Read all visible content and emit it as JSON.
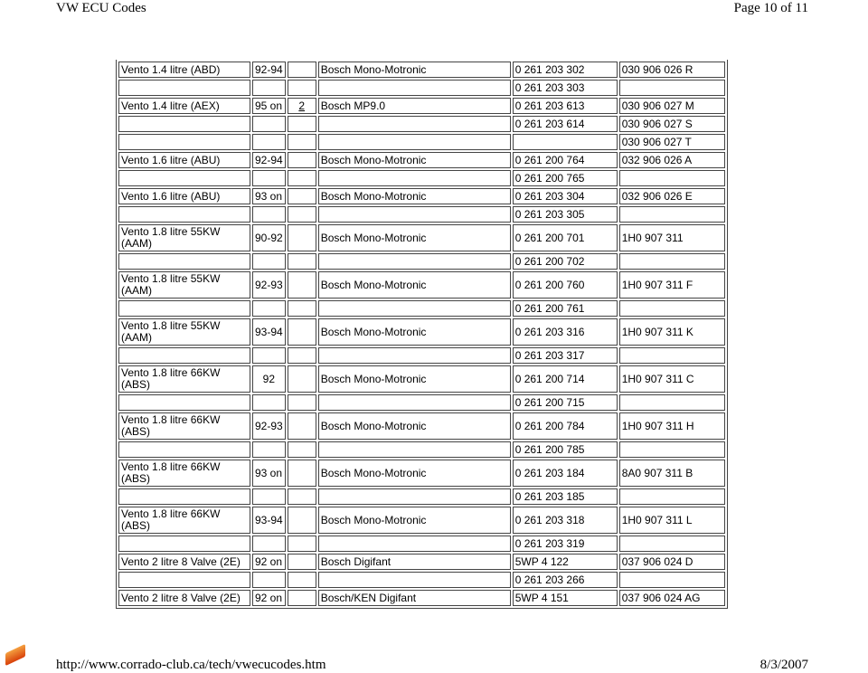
{
  "header": {
    "title": "VW ECU Codes",
    "page": "Page 10 of 11"
  },
  "footer": {
    "url": "http://www.corrado-club.ca/tech/vwecucodes.htm",
    "date": "8/3/2007",
    "icon": "pdf-icon"
  },
  "rows": [
    [
      "Vento 1.4 litre (ABD)",
      "92-94",
      "",
      "Bosch Mono-Motronic",
      "0 261 203 302",
      "030 906 026 R"
    ],
    [
      "",
      "",
      "",
      "",
      "0 261 203 303",
      ""
    ],
    [
      "Vento 1.4 litre (AEX)",
      "95 on",
      "2",
      "Bosch MP9.0",
      "0 261 203 613",
      "030 906 027 M"
    ],
    [
      "",
      "",
      "",
      "",
      "0 261 203 614",
      "030 906 027 S"
    ],
    [
      "",
      "",
      "",
      "",
      "",
      "030 906 027 T"
    ],
    [
      "Vento 1.6 litre (ABU)",
      "92-94",
      "",
      "Bosch Mono-Motronic",
      "0 261 200 764",
      "032 906 026 A"
    ],
    [
      "",
      "",
      "",
      "",
      "0 261 200 765",
      ""
    ],
    [
      "Vento 1.6 litre (ABU)",
      "93 on",
      "",
      "Bosch Mono-Motronic",
      "0 261 203 304",
      "032 906 026 E"
    ],
    [
      "",
      "",
      "",
      "",
      "0 261 203 305",
      ""
    ],
    [
      "Vento 1.8 litre 55KW (AAM)",
      "90-92",
      "",
      "Bosch Mono-Motronic",
      "0 261 200 701",
      "1H0 907 311"
    ],
    [
      "",
      "",
      "",
      "",
      "0 261 200 702",
      ""
    ],
    [
      "Vento 1.8 litre 55KW (AAM)",
      "92-93",
      "",
      "Bosch Mono-Motronic",
      "0 261 200 760",
      "1H0 907 311 F"
    ],
    [
      "",
      "",
      "",
      "",
      "0 261 200 761",
      ""
    ],
    [
      "Vento 1.8 litre 55KW (AAM)",
      "93-94",
      "",
      "Bosch Mono-Motronic",
      "0 261 203 316",
      "1H0 907 311 K"
    ],
    [
      "",
      "",
      "",
      "",
      "0 261 203 317",
      ""
    ],
    [
      "Vento 1.8 litre 66KW (ABS)",
      "92",
      "",
      "Bosch Mono-Motronic",
      "0 261 200 714",
      "1H0 907 311 C"
    ],
    [
      "",
      "",
      "",
      "",
      "0 261 200 715",
      ""
    ],
    [
      "Vento 1.8 litre 66KW (ABS)",
      "92-93",
      "",
      "Bosch Mono-Motronic",
      "0 261 200 784",
      "1H0 907 311 H"
    ],
    [
      "",
      "",
      "",
      "",
      "0 261 200 785",
      ""
    ],
    [
      "Vento 1.8 litre 66KW (ABS)",
      "93 on",
      "",
      "Bosch Mono-Motronic",
      "0 261 203 184",
      "8A0 907 311 B"
    ],
    [
      "",
      "",
      "",
      "",
      "0 261 203 185",
      ""
    ],
    [
      "Vento 1.8 litre 66KW (ABS)",
      "93-94",
      "",
      "Bosch Mono-Motronic",
      "0 261 203 318",
      "1H0 907 311 L"
    ],
    [
      "",
      "",
      "",
      "",
      "0 261 203 319",
      ""
    ],
    [
      "Vento 2 litre 8 Valve (2E)",
      "92 on",
      "",
      "Bosch Digifant",
      "5WP 4 122",
      "037 906 024 D"
    ],
    [
      "",
      "",
      "",
      "",
      "0 261 203 266",
      ""
    ],
    [
      "Vento 2 litre 8 Valve (2E)",
      "92 on",
      "",
      "Bosch/KEN Digifant",
      "5WP 4 151",
      "037 906 024 AG"
    ]
  ]
}
